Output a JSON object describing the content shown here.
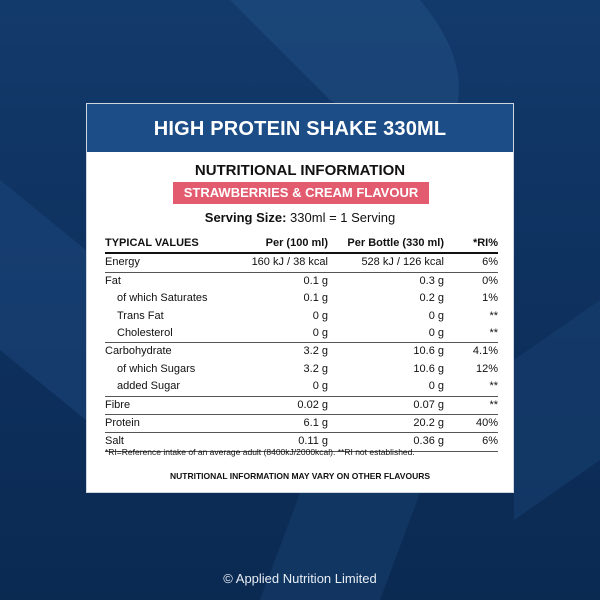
{
  "label": {
    "title": "HIGH PROTEIN SHAKE 330ML",
    "heading": "NUTRITIONAL INFORMATION",
    "flavour": "STRAWBERRIES & CREAM FLAVOUR",
    "serving_label": "Serving Size:",
    "serving_value": "330ml = 1 Serving",
    "columns": [
      "TYPICAL VALUES",
      "Per (100 ml)",
      "Per Bottle (330 ml)",
      "*RI%"
    ],
    "rows": [
      [
        "Energy",
        "160 kJ / 38 kcal",
        "528 kJ / 126 kcal",
        "6%"
      ],
      [
        "Fat",
        "0.1 g",
        "0.3 g",
        "0%"
      ],
      [
        "of which Saturates",
        "0.1 g",
        "0.2 g",
        "1%"
      ],
      [
        "Trans Fat",
        "0 g",
        "0 g",
        "**"
      ],
      [
        "Cholesterol",
        "0 g",
        "0 g",
        "**"
      ],
      [
        "Carbohydrate",
        "3.2 g",
        "10.6 g",
        "4.1%"
      ],
      [
        "of which Sugars",
        "3.2 g",
        "10.6 g",
        "12%"
      ],
      [
        "added Sugar",
        "0 g",
        "0 g",
        "**"
      ],
      [
        "Fibre",
        "0.02 g",
        "0.07 g",
        "**"
      ],
      [
        "Protein",
        "6.1 g",
        "20.2 g",
        "40%"
      ],
      [
        "Salt",
        "0.11 g",
        "0.36 g",
        "6%"
      ]
    ],
    "footnote": "*RI=Reference intake of an average adult (8400kJ/2000kcal). **RI not established.",
    "note": "NUTRITIONAL INFORMATION MAY VARY ON OTHER FLAVOURS"
  },
  "footer": {
    "copyright": "© Applied Nutrition Limited"
  }
}
